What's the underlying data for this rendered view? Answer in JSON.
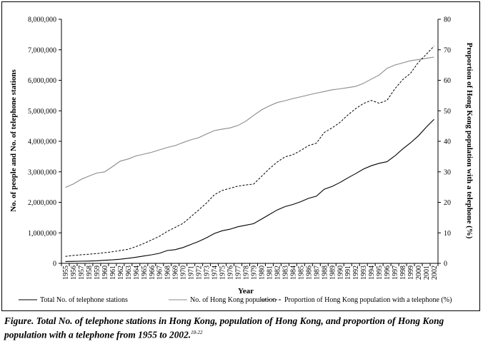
{
  "chart_data": {
    "type": "line",
    "xlabel": "Year",
    "ylabel_left": "No. of people and No. of telephone stations",
    "ylabel_right": "Proportion of Hong Kong population with a telephone (%)",
    "ylim_left": [
      0,
      8000000
    ],
    "ylim_right": [
      0,
      80
    ],
    "yticks_left": [
      "0",
      "1,000,000",
      "2,000,000",
      "3,000,000",
      "4,000,000",
      "5,000,000",
      "6,000,000",
      "7,000,000",
      "8,000,000"
    ],
    "yticks_right": [
      "0",
      "10",
      "20",
      "30",
      "40",
      "50",
      "60",
      "70",
      "80"
    ],
    "x": [
      1955,
      1956,
      1957,
      1958,
      1959,
      1960,
      1961,
      1962,
      1963,
      1964,
      1965,
      1966,
      1967,
      1968,
      1969,
      1970,
      1971,
      1972,
      1973,
      1974,
      1975,
      1976,
      1977,
      1978,
      1979,
      1980,
      1981,
      1982,
      1983,
      1984,
      1985,
      1986,
      1987,
      1988,
      1989,
      1990,
      1991,
      1992,
      1993,
      1994,
      1995,
      1996,
      1997,
      1998,
      1999,
      2000,
      2001,
      2002
    ],
    "grid": false,
    "legend_position": "bottom",
    "series": [
      {
        "name": "Total No. of telephone stations",
        "axis": "left",
        "style": "solid-black",
        "values": [
          60000,
          65000,
          70000,
          75000,
          85000,
          100000,
          115000,
          135000,
          165000,
          200000,
          240000,
          280000,
          330000,
          420000,
          450000,
          520000,
          620000,
          720000,
          840000,
          980000,
          1070000,
          1120000,
          1200000,
          1250000,
          1300000,
          1450000,
          1600000,
          1750000,
          1860000,
          1930000,
          2020000,
          2130000,
          2200000,
          2430000,
          2520000,
          2650000,
          2800000,
          2940000,
          3090000,
          3200000,
          3280000,
          3330000,
          3520000,
          3750000,
          3950000,
          4180000,
          4460000,
          4720000
        ]
      },
      {
        "name": "No. of Hong Kong population",
        "axis": "left",
        "style": "solid-grey",
        "values": [
          2490000,
          2600000,
          2750000,
          2860000,
          2960000,
          3000000,
          3170000,
          3350000,
          3420000,
          3520000,
          3580000,
          3640000,
          3720000,
          3800000,
          3860000,
          3960000,
          4050000,
          4120000,
          4240000,
          4350000,
          4400000,
          4440000,
          4520000,
          4660000,
          4850000,
          5030000,
          5160000,
          5270000,
          5330000,
          5400000,
          5460000,
          5520000,
          5580000,
          5630000,
          5690000,
          5720000,
          5760000,
          5800000,
          5900000,
          6040000,
          6170000,
          6390000,
          6500000,
          6570000,
          6640000,
          6680000,
          6720000,
          6760000
        ]
      },
      {
        "name": "Proportion of Hong Kong population with a telephone (%)",
        "axis": "right",
        "style": "dashed-black",
        "values": [
          2.3,
          2.6,
          2.8,
          3.0,
          3.2,
          3.5,
          3.8,
          4.2,
          4.6,
          5.5,
          6.5,
          7.7,
          8.9,
          10.5,
          11.8,
          13.1,
          15.3,
          17.5,
          19.8,
          22.5,
          23.9,
          24.6,
          25.3,
          25.7,
          26.0,
          28.5,
          31.0,
          33.2,
          34.9,
          35.6,
          37.0,
          38.6,
          39.4,
          42.9,
          44.4,
          46.2,
          48.6,
          50.7,
          52.4,
          53.4,
          52.5,
          53.4,
          57.2,
          60.2,
          62.3,
          65.9,
          68.5,
          71.2
        ]
      }
    ]
  },
  "caption": {
    "text": "Figure.  Total No. of telephone stations in Hong Kong, population of Hong Kong, and proportion of Hong Kong population with a telephone from 1955 to 2002.",
    "ref": "18-22"
  }
}
